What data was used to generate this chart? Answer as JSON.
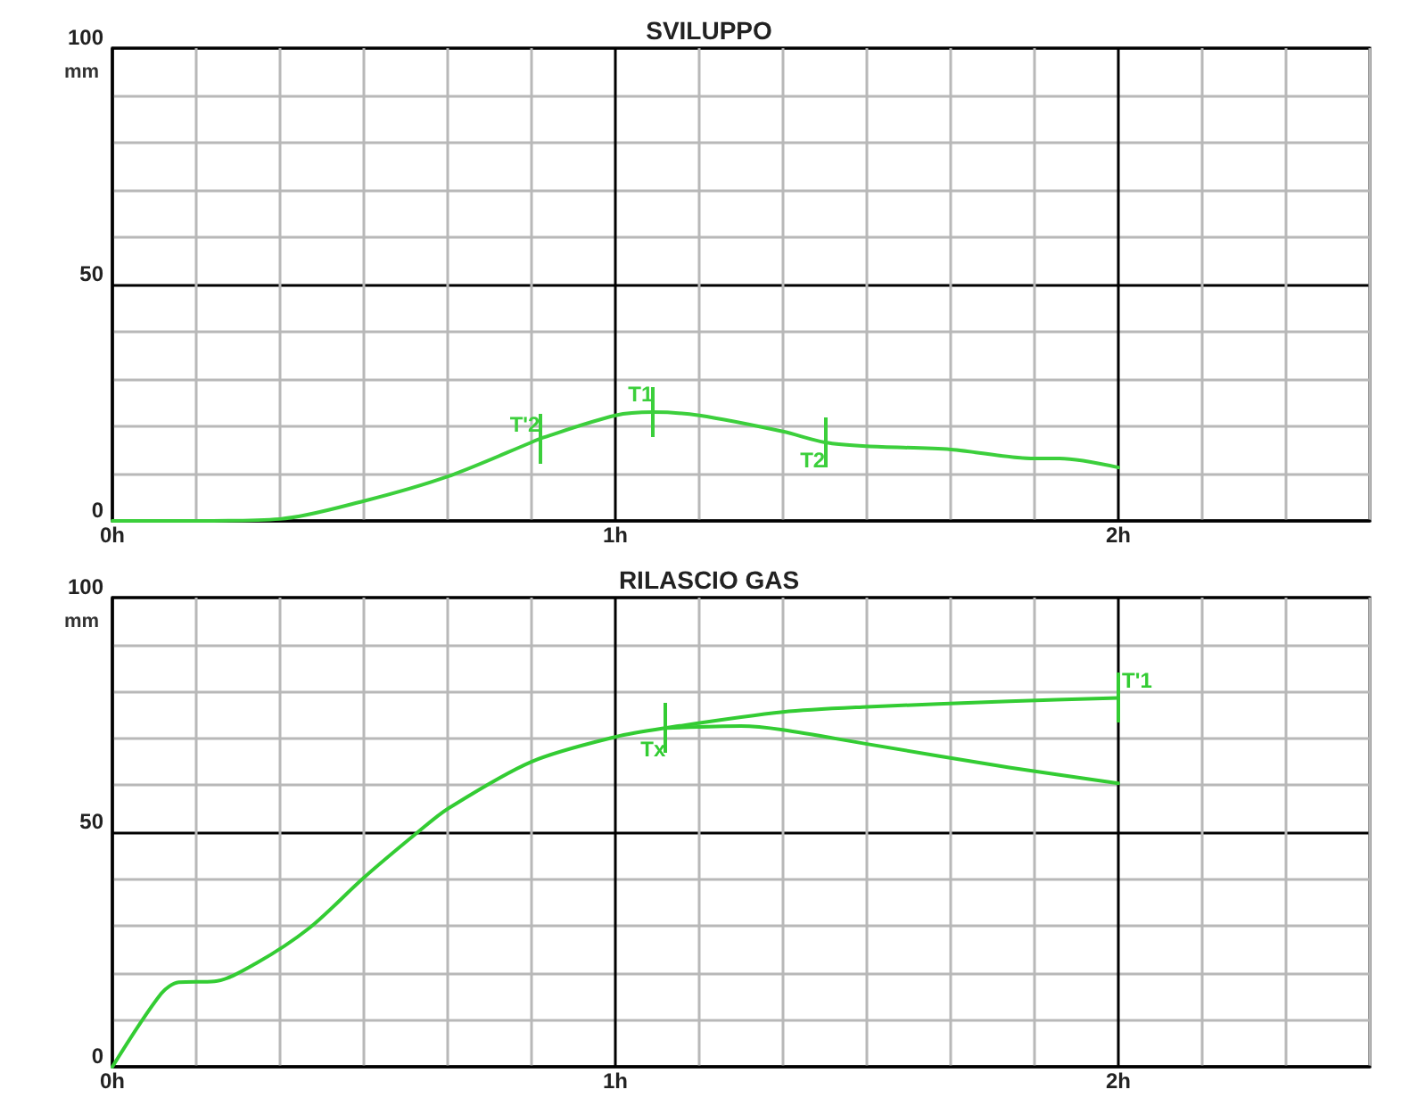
{
  "chart_data": [
    {
      "type": "line",
      "title": "SVILUPPO",
      "ylabel": "mm",
      "xlim": [
        0,
        2.5
      ],
      "ylim": [
        0,
        100
      ],
      "xticks": [
        {
          "value": 0,
          "label": "0h"
        },
        {
          "value": 0.167,
          "label": null
        },
        {
          "value": 0.333,
          "label": null
        },
        {
          "value": 0.5,
          "label": null
        },
        {
          "value": 0.667,
          "label": null
        },
        {
          "value": 0.833,
          "label": null
        },
        {
          "value": 1,
          "label": "1h"
        },
        {
          "value": 1.167,
          "label": null
        },
        {
          "value": 1.333,
          "label": null
        },
        {
          "value": 1.5,
          "label": null
        },
        {
          "value": 1.667,
          "label": null
        },
        {
          "value": 1.833,
          "label": null
        },
        {
          "value": 2,
          "label": "2h"
        },
        {
          "value": 2.167,
          "label": null
        },
        {
          "value": 2.333,
          "label": null
        },
        {
          "value": 2.5,
          "label": null
        }
      ],
      "yticks": [
        0,
        {
          "value": 10,
          "label": null
        },
        {
          "value": 20,
          "label": null
        },
        {
          "value": 30,
          "label": null
        },
        {
          "value": 40,
          "label": null
        },
        50,
        {
          "value": 60,
          "label": null
        },
        {
          "value": 70,
          "label": null
        },
        {
          "value": 80,
          "label": null
        },
        {
          "value": 90,
          "label": null
        },
        100
      ],
      "grid": true,
      "marker": "none",
      "series": [
        {
          "color": "#3ccf3c",
          "x": [
            0,
            0.167,
            0.333,
            0.5,
            0.667,
            0.833,
            0.85,
            1,
            1.075,
            1.167,
            1.333,
            1.417,
            1.5,
            1.667,
            1.833,
            1.883,
            2
          ],
          "values": [
            0,
            0,
            0.4,
            4.2,
            9.4,
            16.6,
            17.4,
            22.3,
            23,
            22.3,
            18.9,
            16.6,
            15.8,
            15.1,
            13.2,
            13.2,
            11.3
          ]
        }
      ],
      "annotations": [
        {
          "text": "T'2",
          "x": 0.85,
          "y": 17.4
        },
        {
          "text": "T1",
          "x": 1.075,
          "y": 23
        },
        {
          "text": "T2",
          "x": 1.417,
          "y": 16.6
        }
      ]
    },
    {
      "type": "line",
      "title": "RILASCIO GAS",
      "ylabel": "mm",
      "xlim": [
        0,
        2.5
      ],
      "ylim": [
        0,
        100
      ],
      "xticks": [
        {
          "value": 0,
          "label": "0h"
        },
        {
          "value": 0.167,
          "label": null
        },
        {
          "value": 0.333,
          "label": null
        },
        {
          "value": 0.5,
          "label": null
        },
        {
          "value": 0.667,
          "label": null
        },
        {
          "value": 0.833,
          "label": null
        },
        {
          "value": 1,
          "label": "1h"
        },
        {
          "value": 1.167,
          "label": null
        },
        {
          "value": 1.333,
          "label": null
        },
        {
          "value": 1.5,
          "label": null
        },
        {
          "value": 1.667,
          "label": null
        },
        {
          "value": 1.833,
          "label": null
        },
        {
          "value": 2,
          "label": "2h"
        },
        {
          "value": 2.167,
          "label": null
        },
        {
          "value": 2.333,
          "label": null
        },
        {
          "value": 2.5,
          "label": null
        }
      ],
      "yticks": [
        0,
        {
          "value": 10,
          "label": null
        },
        {
          "value": 20,
          "label": null
        },
        {
          "value": 30,
          "label": null
        },
        {
          "value": 40,
          "label": null
        },
        50,
        {
          "value": 60,
          "label": null
        },
        {
          "value": 70,
          "label": null
        },
        {
          "value": 80,
          "label": null
        },
        {
          "value": 90,
          "label": null
        },
        100
      ],
      "grid": true,
      "marker": "none",
      "series": [
        {
          "color": "#33cc33",
          "x": [
            0,
            0.097,
            0.132,
            0.203,
            0.285,
            0.392,
            0.5,
            0.605,
            0.667,
            0.833,
            1,
            1.1,
            1.333,
            1.5,
            1.783,
            2
          ],
          "values": [
            0,
            15.6,
            18,
            18.2,
            22,
            29.6,
            40.3,
            49.8,
            55,
            65,
            70.3,
            72.2,
            75.6,
            76.7,
            77.9,
            78.6
          ]
        },
        {
          "color": "#33cc33",
          "x": [
            1.1,
            1.25,
            1.333,
            1.5,
            1.783,
            2
          ],
          "values": [
            72.2,
            72.6,
            71.8,
            68.8,
            63.8,
            60.4
          ]
        }
      ],
      "annotations": [
        {
          "text": "Tx",
          "x": 1.1,
          "y": 72.2
        },
        {
          "text": "T'1",
          "x": 2,
          "y": 78.6
        }
      ]
    }
  ]
}
